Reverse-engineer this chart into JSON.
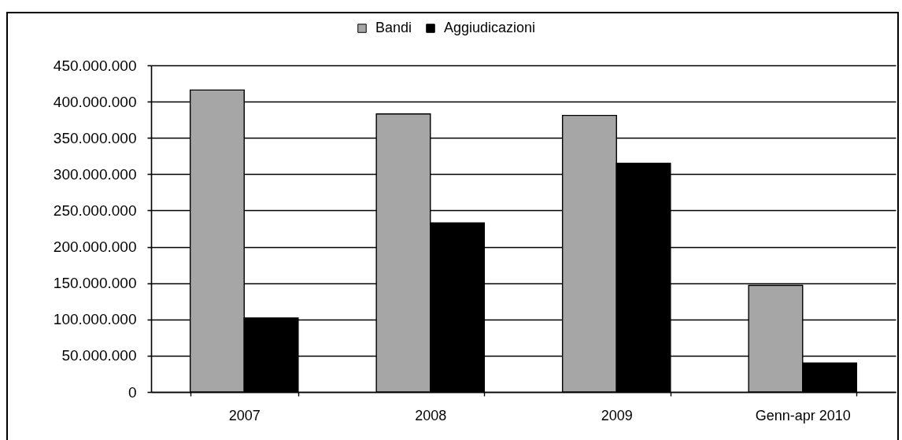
{
  "chart_data": {
    "type": "bar",
    "categories": [
      "2007",
      "2008",
      "2009",
      "Genn-apr 2010"
    ],
    "series": [
      {
        "name": "Bandi",
        "color": "#a6a6a6",
        "values": [
          416000000,
          383000000,
          381000000,
          147000000
        ]
      },
      {
        "name": "Aggiudicazioni",
        "color": "#000000",
        "values": [
          102000000,
          233000000,
          315000000,
          40000000
        ]
      }
    ],
    "ylim": [
      0,
      450000000
    ],
    "yticks": [
      0,
      {
        "value": 50000000,
        "label": "50.000.000"
      },
      {
        "value": 100000000,
        "label": "100.000.000"
      },
      {
        "value": 150000000,
        "label": "150.000.000"
      },
      {
        "value": 200000000,
        "label": "200.000.000"
      },
      {
        "value": 250000000,
        "label": "250.000.000"
      },
      {
        "value": 300000000,
        "label": "300.000.000"
      },
      {
        "value": 350000000,
        "label": "350.000.000"
      },
      {
        "value": 400000000,
        "label": "400.000.000"
      },
      {
        "value": 450000000,
        "label": "450.000.000"
      }
    ],
    "grid": "y",
    "legend": "top"
  }
}
